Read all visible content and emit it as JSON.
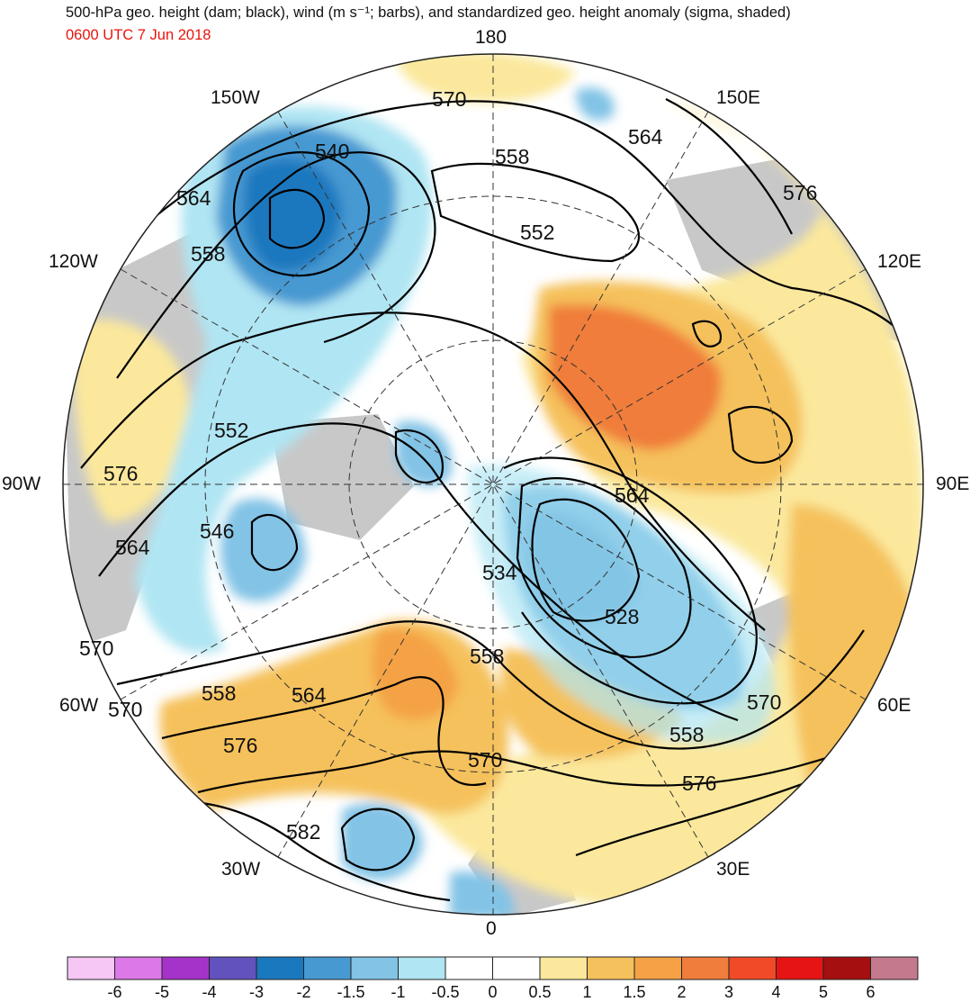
{
  "header": {
    "title": "500-hPa geo. height (dam; black), wind (m s⁻¹; barbs), and standardized geo. height anomaly (sigma, shaded)",
    "valid_time": "0600 UTC 7 Jun 2018"
  },
  "longitude_labels": {
    "lon_180": "180",
    "lon_150e": "150E",
    "lon_120e": "120E",
    "lon_90e": "90E",
    "lon_60e": "60E",
    "lon_30e": "30E",
    "lon_0": "0",
    "lon_30w": "30W",
    "lon_60w": "60W",
    "lon_90w": "90W",
    "lon_120w": "120W",
    "lon_150w": "150W"
  },
  "contour_labels": [
    {
      "text": "570"
    },
    {
      "text": "564"
    },
    {
      "text": "558"
    },
    {
      "text": "540"
    },
    {
      "text": "564"
    },
    {
      "text": "552"
    },
    {
      "text": "558"
    },
    {
      "text": "576"
    },
    {
      "text": "552"
    },
    {
      "text": "576"
    },
    {
      "text": "546"
    },
    {
      "text": "564"
    },
    {
      "text": "534"
    },
    {
      "text": "564"
    },
    {
      "text": "528"
    },
    {
      "text": "570"
    },
    {
      "text": "558"
    },
    {
      "text": "558"
    },
    {
      "text": "564"
    },
    {
      "text": "570"
    },
    {
      "text": "570"
    },
    {
      "text": "576"
    },
    {
      "text": "558"
    },
    {
      "text": "570"
    },
    {
      "text": "576"
    },
    {
      "text": "582"
    }
  ],
  "colorbar": {
    "labels": [
      "-6",
      "-5",
      "-4",
      "-3",
      "-2",
      "-1.5",
      "-1",
      "-0.5",
      "0",
      "0.5",
      "1",
      "1.5",
      "2",
      "3",
      "4",
      "5",
      "6"
    ],
    "colors": [
      "#f6c6f5",
      "#dc78e8",
      "#a633c9",
      "#6252be",
      "#1a78be",
      "#4799d2",
      "#82c3e6",
      "#b0e5f3",
      "#ffffff",
      "#ffffff",
      "#fbe89c",
      "#f5c15c",
      "#f4a245",
      "#f07d3b",
      "#f04a28",
      "#e61414",
      "#a50f0f",
      "#c4798c"
    ]
  },
  "legend_colors": {
    "land": "#c8c8c8",
    "contour": "#000000",
    "title_red": "#e8140c"
  }
}
